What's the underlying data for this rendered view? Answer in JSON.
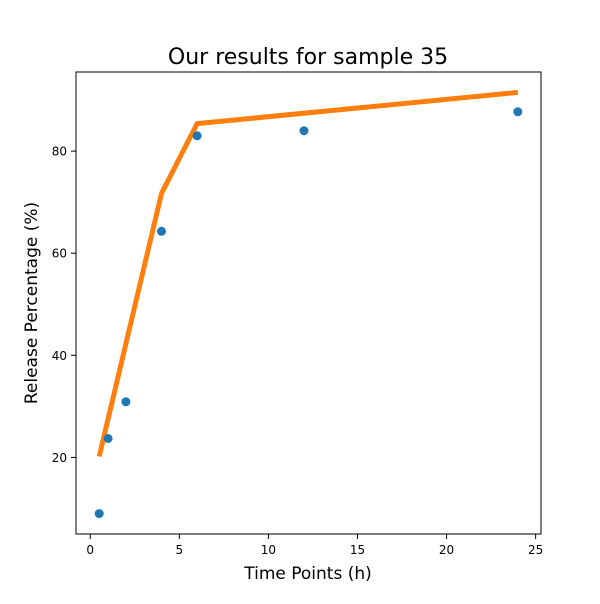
{
  "chart_data": {
    "type": "scatter",
    "title": "Our results for sample 35",
    "xlabel": "Time Points (h)",
    "ylabel": "Release Percentage (%)",
    "xlim": [
      -0.8,
      25.3
    ],
    "ylim": [
      5.0,
      95.5
    ],
    "xticks": [
      0,
      5,
      10,
      15,
      20,
      25
    ],
    "yticks": [
      20,
      40,
      60,
      80
    ],
    "grid": false,
    "series": [
      {
        "kind": "scatter",
        "color": "#1f77b4",
        "x": [
          0.5,
          1,
          2,
          4,
          6,
          12,
          24
        ],
        "y": [
          9.0,
          23.7,
          30.9,
          64.3,
          83.0,
          84.0,
          87.7
        ]
      },
      {
        "kind": "line",
        "color": "#ff7f0e",
        "x": [
          0.5,
          4,
          6,
          24
        ],
        "y": [
          20.2,
          71.7,
          85.4,
          91.5
        ]
      }
    ]
  }
}
